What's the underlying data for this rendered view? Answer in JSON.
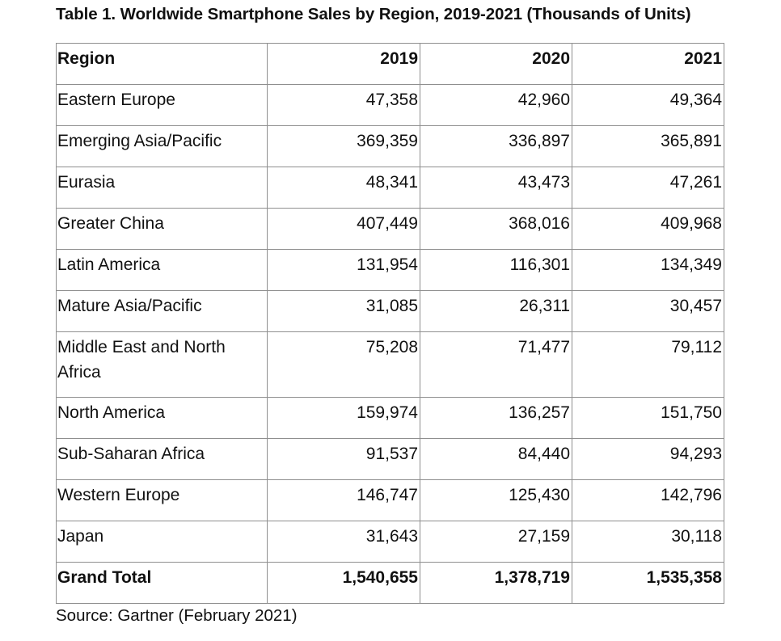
{
  "title": "Table 1. Worldwide Smartphone Sales by Region, 2019-2021 (Thousands of Units)",
  "headers": [
    "Region",
    "2019",
    "2020",
    "2021"
  ],
  "rows": [
    {
      "region": "Eastern Europe",
      "y2019": "47,358",
      "y2020": "42,960",
      "y2021": "49,364"
    },
    {
      "region": "Emerging Asia/Pacific",
      "y2019": "369,359",
      "y2020": "336,897",
      "y2021": "365,891"
    },
    {
      "region": "Eurasia",
      "y2019": "48,341",
      "y2020": "43,473",
      "y2021": "47,261"
    },
    {
      "region": "Greater China",
      "y2019": "407,449",
      "y2020": "368,016",
      "y2021": "409,968"
    },
    {
      "region": "Latin America",
      "y2019": "131,954",
      "y2020": "116,301",
      "y2021": "134,349"
    },
    {
      "region": "Mature Asia/Pacific",
      "y2019": "31,085",
      "y2020": "26,311",
      "y2021": "30,457"
    },
    {
      "region": "Middle East and North Africa",
      "y2019": "75,208",
      "y2020": "71,477",
      "y2021": "79,112"
    },
    {
      "region": "North America",
      "y2019": "159,974",
      "y2020": "136,257",
      "y2021": "151,750"
    },
    {
      "region": "Sub-Saharan Africa",
      "y2019": "91,537",
      "y2020": "84,440",
      "y2021": "94,293"
    },
    {
      "region": "Western Europe",
      "y2019": "146,747",
      "y2020": "125,430",
      "y2021": "142,796"
    },
    {
      "region": "Japan",
      "y2019": "31,643",
      "y2020": "27,159",
      "y2021": "30,118"
    }
  ],
  "total": {
    "region": "Grand Total",
    "y2019": "1,540,655",
    "y2020": "1,378,719",
    "y2021": "1,535,358"
  },
  "source": "Source: Gartner (February 2021)"
}
